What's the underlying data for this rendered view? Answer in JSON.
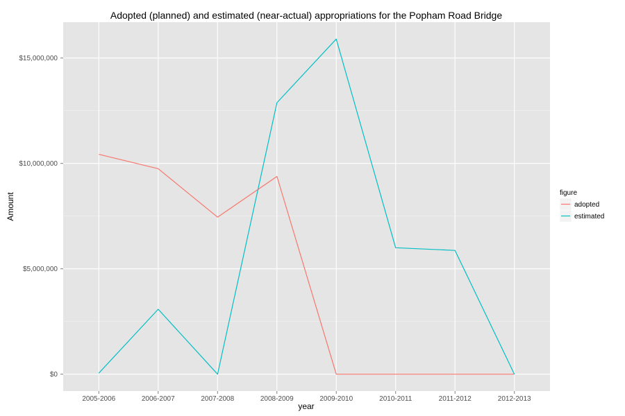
{
  "chart_data": {
    "type": "line",
    "title": "Adopted (planned) and estimated (near-actual) appropriations for the Popham Road Bridge",
    "xlabel": "year",
    "ylabel": "Amount",
    "categories": [
      "2005-2006",
      "2006-2007",
      "2007-2008",
      "2008-2009",
      "2009-2010",
      "2010-2011",
      "2011-2012",
      "2012-2013"
    ],
    "ylim": [
      -800000,
      16700000
    ],
    "yticks": [
      0,
      5000000,
      10000000,
      15000000
    ],
    "ytick_labels": [
      "$0",
      "$5,000,000",
      "$10,000,000",
      "$15,000,000"
    ],
    "grid": true,
    "legend": {
      "title": "figure",
      "position": "right"
    },
    "series": [
      {
        "name": "adopted",
        "color": "#F8766D",
        "values": [
          10430000,
          9750000,
          7450000,
          9380000,
          0,
          0,
          0,
          0
        ]
      },
      {
        "name": "estimated",
        "color": "#00BFC4",
        "values": [
          50000,
          3080000,
          0,
          12880000,
          15900000,
          6000000,
          5870000,
          0
        ]
      }
    ]
  }
}
